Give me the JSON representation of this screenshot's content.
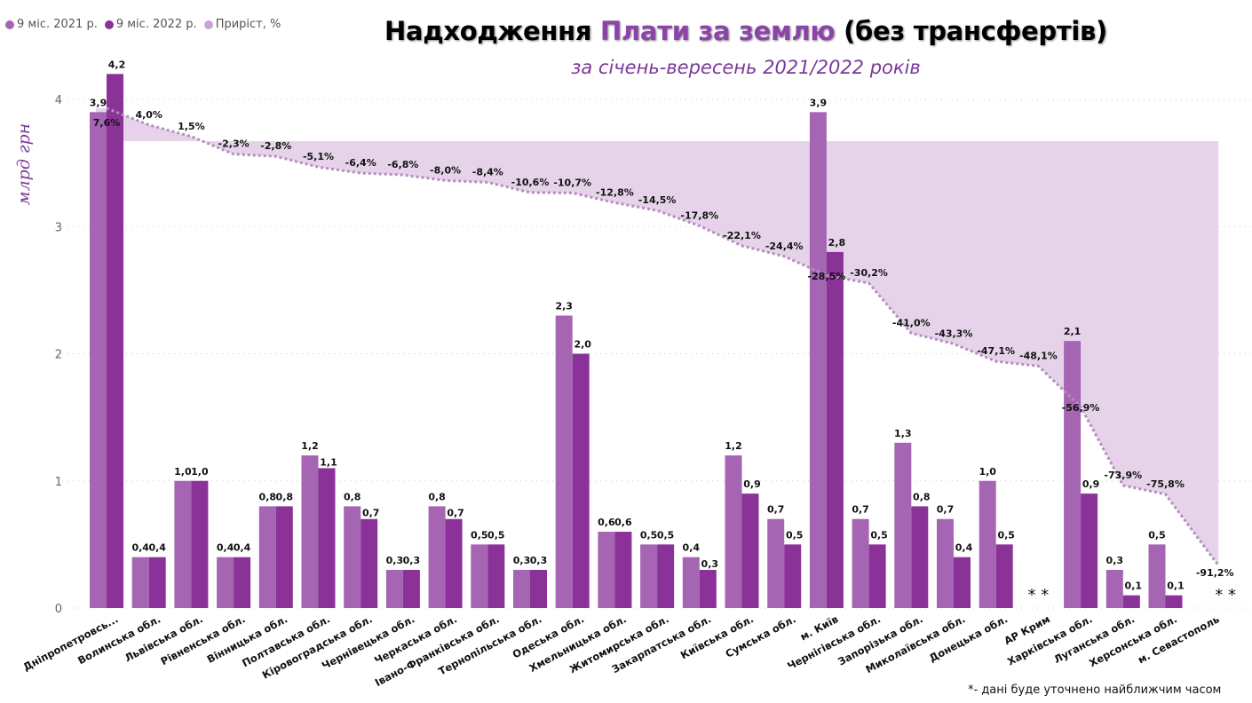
{
  "title": {
    "part1": "Надходження ",
    "accent": "Плати за землю",
    "part2": " (без трансфертів)",
    "subtitle": "за січень-вересень 2021/2022 років"
  },
  "legend": [
    {
      "label": "9 міс. 2021 р.",
      "color": "#a565b3"
    },
    {
      "label": "9 міс. 2022 р.",
      "color": "#8a3298"
    },
    {
      "label": "Приріст, %",
      "color": "#c9a4d3"
    }
  ],
  "footnote": "*- дані буде уточнено найближчим часом",
  "chart_data": {
    "type": "bar",
    "title": "Надходження Плати за землю (без трансфертів) за січень-вересень 2021/2022 років",
    "xlabel": "",
    "ylabel": "млрд грн",
    "ylim": [
      0,
      4
    ],
    "yticks": [
      0,
      1,
      2,
      3,
      4
    ],
    "grid": true,
    "legend_position": "top-left",
    "categories": [
      "Дніпропетровсь...",
      "Волинська обл.",
      "Львівська обл.",
      "Рівненська обл.",
      "Вінницька обл.",
      "Полтавська обл.",
      "Кіровоградська обл.",
      "Чернівецька обл.",
      "Черкаська обл.",
      "Івано-Франківська обл.",
      "Тернопільська обл.",
      "Одеська обл.",
      "Хмельницька обл.",
      "Житомирська обл.",
      "Закарпатська обл.",
      "Київська обл.",
      "Сумська обл.",
      "м. Київ",
      "Чернігівська обл.",
      "Запорізька обл.",
      "Миколаївська обл.",
      "Донецька обл.",
      "АР Крим",
      "Харківська обл.",
      "Луганська обл.",
      "Херсонська обл.",
      "м. Севастополь"
    ],
    "series": [
      {
        "name": "9 міс. 2021 р.",
        "values": [
          3.9,
          0.4,
          1.0,
          0.4,
          0.8,
          1.2,
          0.8,
          0.3,
          0.8,
          0.5,
          0.3,
          2.3,
          0.6,
          0.5,
          0.4,
          1.2,
          0.7,
          3.9,
          0.7,
          1.3,
          0.7,
          1.0,
          null,
          2.1,
          0.3,
          0.5,
          null
        ],
        "labels": [
          "3,9",
          "0,4",
          "1,0",
          "0,4",
          "0,8",
          "1,2",
          "0,8",
          "0,3",
          "0,8",
          "0,5",
          "0,3",
          "2,3",
          "0,6",
          "0,5",
          "0,4",
          "1,2",
          "0,7",
          "3,9",
          "0,7",
          "1,3",
          "0,7",
          "1,0",
          "",
          "2,1",
          "0,3",
          "0,5",
          ""
        ]
      },
      {
        "name": "9 міс. 2022 р.",
        "values": [
          4.2,
          0.4,
          1.0,
          0.4,
          0.8,
          1.1,
          0.7,
          0.3,
          0.7,
          0.5,
          0.3,
          2.0,
          0.6,
          0.5,
          0.3,
          0.9,
          0.5,
          2.8,
          0.5,
          0.8,
          0.4,
          0.5,
          null,
          0.9,
          0.1,
          0.1,
          null
        ],
        "labels": [
          "4,2",
          "0,4",
          "1,0",
          "0,4",
          "0,8",
          "1,1",
          "0,7",
          "0,3",
          "0,7",
          "0,5",
          "0,3",
          "2,0",
          "0,6",
          "0,5",
          "0,3",
          "0,9",
          "0,5",
          "2,8",
          "0,5",
          "0,8",
          "0,4",
          "0,5",
          "",
          "0,9",
          "0,1",
          "0,1",
          ""
        ]
      },
      {
        "name": "Приріст, %",
        "type": "area",
        "values": [
          7.6,
          4.0,
          1.5,
          -2.3,
          -2.8,
          -5.1,
          -6.4,
          -6.8,
          -8.0,
          -8.4,
          -10.6,
          -10.7,
          -12.8,
          -14.5,
          -17.8,
          -22.1,
          -24.4,
          -28.5,
          -30.2,
          -41.0,
          -43.3,
          -47.1,
          -48.1,
          -56.9,
          -73.9,
          -75.8,
          -91.2
        ],
        "labels": [
          "7,6%",
          "4,0%",
          "1,5%",
          "-2,3%",
          "-2,8%",
          "-5,1%",
          "-6,4%",
          "-6,8%",
          "-8,0%",
          "-8,4%",
          "-10,6%",
          "-10,7%",
          "-12,8%",
          "-14,5%",
          "-17,8%",
          "-22,1%",
          "-24,4%",
          "-28,5%",
          "-30,2%",
          "-41,0%",
          "-43,3%",
          "-47,1%",
          "-48,1%",
          "-56,9%",
          "-73,9%",
          "-75,8%",
          "-91,2%"
        ]
      }
    ],
    "annotations": [
      {
        "category": "АР Крим",
        "text": "* *"
      },
      {
        "category": "м. Севастополь",
        "text": "* *"
      }
    ]
  }
}
